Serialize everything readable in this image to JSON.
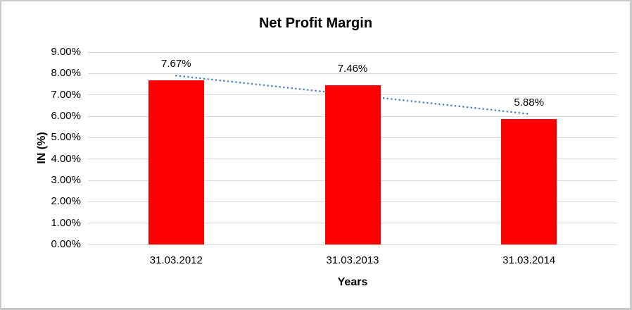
{
  "chart_data": {
    "type": "bar",
    "title": "Net Profit Margin",
    "xlabel": "Years",
    "ylabel": "IN (%)",
    "categories": [
      "31.03.2012",
      "31.03.2013",
      "31.03.2014"
    ],
    "values": [
      7.67,
      7.46,
      5.88
    ],
    "data_labels": [
      "7.67%",
      "7.46%",
      "5.88%"
    ],
    "ylim": [
      0,
      9
    ],
    "ytick_step": 1,
    "ytick_labels": [
      "0.00%",
      "1.00%",
      "2.00%",
      "3.00%",
      "4.00%",
      "5.00%",
      "6.00%",
      "7.00%",
      "8.00%",
      "9.00%"
    ],
    "grid": true,
    "legend": "none",
    "bar_color": "#FF0000",
    "gridline_color": "#D9D9D9",
    "text_color": "#000000",
    "trendline": {
      "type": "linear",
      "style": "dotted",
      "color": "#4A86C8",
      "start_value": 7.9,
      "end_value": 6.11
    }
  }
}
